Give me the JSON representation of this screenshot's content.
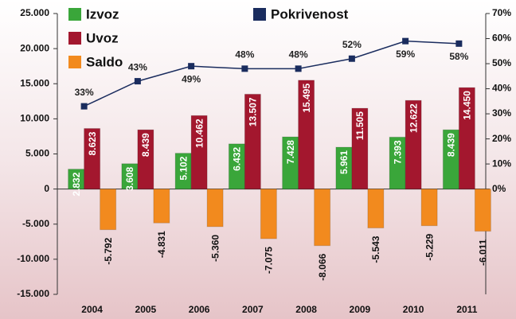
{
  "chart_data": {
    "type": "bar",
    "categories": [
      "2004",
      "2005",
      "2006",
      "2007",
      "2008",
      "2009",
      "2010",
      "2011"
    ],
    "series": [
      {
        "name": "Izvoz",
        "color": "#3aa63a",
        "values": [
          2832,
          3608,
          5102,
          6432,
          7428,
          5961,
          7393,
          8439
        ],
        "value_labels": [
          "2.832",
          "3.608",
          "5.102",
          "6.432",
          "7.428",
          "5.961",
          "7.393",
          "8.439"
        ]
      },
      {
        "name": "Uvoz",
        "color": "#a3172e",
        "values": [
          8623,
          8439,
          10462,
          13507,
          15495,
          11505,
          12622,
          14450
        ],
        "value_labels": [
          "8.623",
          "8.439",
          "10.462",
          "13.507",
          "15.495",
          "11.505",
          "12.622",
          "14.450"
        ]
      },
      {
        "name": "Saldo",
        "color": "#f28a1e",
        "values": [
          -5792,
          -4831,
          -5360,
          -7075,
          -8066,
          -5543,
          -5229,
          -6011
        ],
        "value_labels": [
          "-5.792",
          "-4.831",
          "-5.360",
          "-7.075",
          "-8.066",
          "-5.543",
          "-5.229",
          "-6.011"
        ]
      },
      {
        "name": "Pokrivenost",
        "color": "#1a2c5e",
        "axis": "y2",
        "type": "line",
        "values": [
          33,
          43,
          49,
          48,
          48,
          52,
          59,
          58
        ],
        "value_labels": [
          "33%",
          "43%",
          "49%",
          "48%",
          "48%",
          "52%",
          "59%",
          "58%"
        ]
      }
    ],
    "ylim": [
      -15000,
      25000
    ],
    "yticks": [
      {
        "value": -15000,
        "label": "-15.000"
      },
      {
        "value": -10000,
        "label": "-10.000"
      },
      {
        "value": -5000,
        "label": "-5.000"
      },
      0,
      {
        "value": 5000,
        "label": "5.000"
      },
      {
        "value": 10000,
        "label": "10.000"
      },
      {
        "value": 15000,
        "label": "15.000"
      },
      {
        "value": 20000,
        "label": "20.000"
      },
      {
        "value": 25000,
        "label": "25.000"
      }
    ],
    "y2lim": [
      -42,
      70
    ],
    "y2ticks": [
      {
        "value": 0,
        "label": "0%"
      },
      {
        "value": 10,
        "label": "10%"
      },
      {
        "value": 20,
        "label": "20%"
      },
      {
        "value": 30,
        "label": "30%"
      },
      {
        "value": 40,
        "label": "40%"
      },
      {
        "value": 50,
        "label": "50%"
      },
      {
        "value": 60,
        "label": "60%"
      },
      {
        "value": 70,
        "label": "70%"
      }
    ]
  }
}
